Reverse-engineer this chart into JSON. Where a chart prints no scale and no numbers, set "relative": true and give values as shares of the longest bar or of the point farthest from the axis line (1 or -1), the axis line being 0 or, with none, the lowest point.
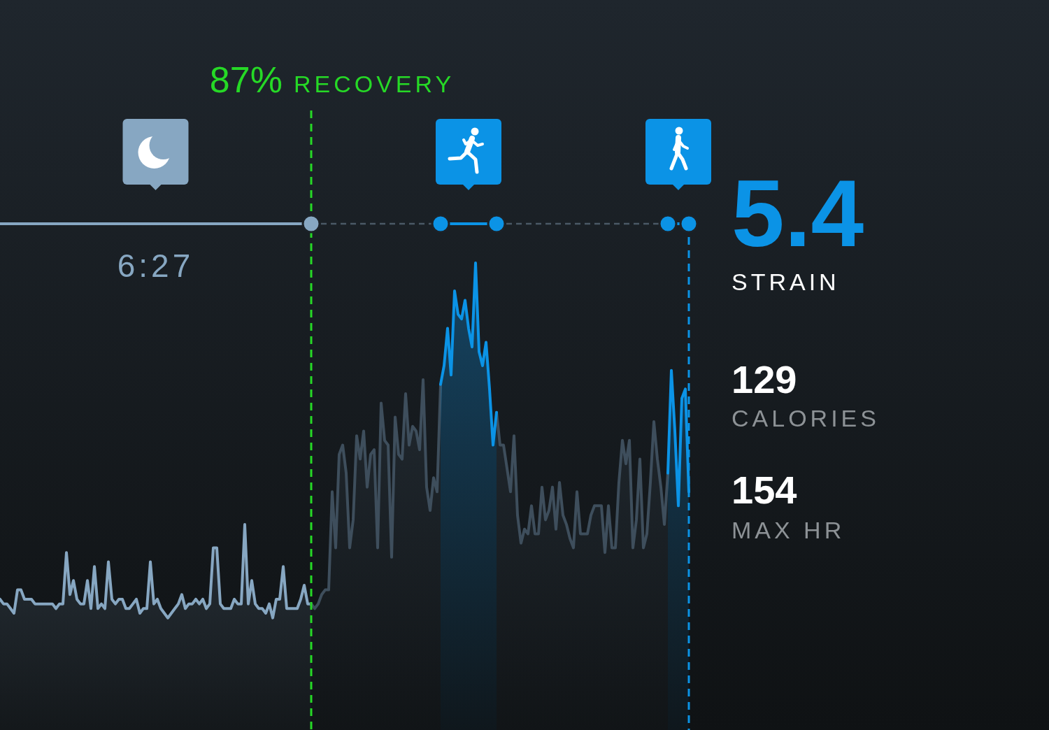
{
  "chart_data": {
    "type": "area",
    "relative": true,
    "categories": [
      null,
      null,
      null,
      null,
      null,
      null,
      null,
      null,
      null,
      null,
      null,
      null,
      null,
      null,
      null,
      null,
      null,
      null,
      null,
      null,
      null,
      null,
      null,
      null,
      null,
      null,
      null,
      null,
      null,
      null,
      null,
      null,
      null,
      null,
      null,
      null,
      null,
      null,
      null,
      null,
      null,
      null,
      null,
      null,
      null,
      null,
      null,
      null,
      null,
      null,
      null,
      null,
      null,
      null,
      null,
      null,
      null,
      null,
      null,
      null,
      null,
      null,
      null,
      null,
      null,
      null,
      null,
      null,
      null,
      null,
      null,
      null,
      null,
      null,
      null,
      null,
      null,
      null,
      null,
      null,
      null,
      null,
      null,
      null,
      null,
      null,
      null,
      null,
      null,
      null,
      null,
      null,
      null,
      null,
      null,
      null,
      null,
      null,
      null,
      null,
      null,
      null,
      null,
      null,
      null,
      null,
      null,
      null,
      null,
      null,
      null,
      null,
      null,
      null,
      null,
      null,
      null,
      null,
      null,
      null,
      null,
      null,
      null,
      null,
      null,
      null,
      null,
      null,
      null,
      null,
      null,
      null,
      null,
      null,
      null,
      null,
      null,
      null,
      null,
      null,
      null,
      null,
      null,
      null,
      null,
      null,
      null,
      null,
      null,
      null,
      null,
      null,
      null,
      null,
      null,
      null,
      null,
      null,
      null,
      null,
      null,
      null,
      null,
      null,
      null,
      null,
      null,
      null,
      null,
      null,
      null,
      null,
      null,
      null,
      null,
      null,
      null,
      null,
      null,
      null,
      null,
      null,
      null,
      null,
      null,
      null,
      null,
      null,
      null,
      null,
      null,
      null,
      null,
      null,
      null,
      null,
      null,
      null
    ],
    "series": [
      {
        "color": "#87a7c2",
        "values": [
          0.28,
          0.27,
          0.27,
          0.26,
          0.25,
          0.3,
          0.3,
          0.28,
          0.28,
          0.28,
          0.27,
          0.27,
          0.27,
          0.27,
          0.27,
          0.27,
          0.26,
          0.27,
          0.27,
          0.38,
          0.29,
          0.32,
          0.28,
          0.27,
          0.27,
          0.32,
          0.26,
          0.35,
          0.26,
          0.27,
          0.26,
          0.36,
          0.28,
          0.27,
          0.28,
          0.28,
          0.26,
          0.26,
          0.27,
          0.28,
          0.25,
          0.26,
          0.26,
          0.36,
          0.27,
          0.28,
          0.26,
          0.25,
          0.24,
          0.25,
          0.26,
          0.27,
          0.29,
          0.26,
          0.27,
          0.27,
          0.28,
          0.27,
          0.28,
          0.26,
          0.27,
          0.39,
          0.39,
          0.27,
          0.26,
          0.26,
          0.26,
          0.28,
          0.27,
          0.27,
          0.44,
          0.27,
          0.32,
          0.27,
          0.26,
          0.26,
          0.25,
          0.27,
          0.24,
          0.28,
          0.28,
          0.35,
          0.26,
          0.26,
          0.26,
          0.26,
          0.28,
          0.31,
          0.27,
          0.27,
          null,
          null,
          null,
          null,
          null,
          null,
          null,
          null,
          null,
          null,
          null,
          null,
          null,
          null,
          null,
          null,
          null,
          null,
          null,
          null,
          null,
          null,
          null,
          null,
          null,
          null,
          null,
          null,
          null,
          null,
          null,
          null,
          null,
          null,
          null,
          null,
          null,
          null,
          null,
          null,
          null,
          null,
          null,
          null,
          null,
          null,
          null,
          null,
          null,
          null,
          null,
          null,
          null,
          null,
          null,
          null,
          null,
          null,
          null,
          null,
          null,
          null,
          null,
          null,
          null,
          null,
          null,
          null,
          null,
          null,
          null,
          null,
          null,
          null,
          null,
          null,
          null,
          null,
          null,
          null,
          null,
          null,
          null,
          null,
          null,
          null,
          null,
          null,
          null,
          null,
          null,
          null,
          null,
          null,
          null,
          null,
          null,
          null,
          null,
          null,
          null,
          null,
          null,
          null,
          null,
          null,
          null,
          null
        ]
      },
      {
        "color": "#3e4e5c",
        "values": [
          null,
          null,
          null,
          null,
          null,
          null,
          null,
          null,
          null,
          null,
          null,
          null,
          null,
          null,
          null,
          null,
          null,
          null,
          null,
          null,
          null,
          null,
          null,
          null,
          null,
          null,
          null,
          null,
          null,
          null,
          null,
          null,
          null,
          null,
          null,
          null,
          null,
          null,
          null,
          null,
          null,
          null,
          null,
          null,
          null,
          null,
          null,
          null,
          null,
          null,
          null,
          null,
          null,
          null,
          null,
          null,
          null,
          null,
          null,
          null,
          null,
          null,
          null,
          null,
          null,
          null,
          null,
          null,
          null,
          null,
          null,
          null,
          null,
          null,
          null,
          null,
          null,
          null,
          null,
          null,
          null,
          null,
          null,
          null,
          null,
          null,
          null,
          null,
          null,
          0.27,
          0.26,
          0.27,
          0.29,
          0.3,
          0.3,
          0.51,
          0.39,
          0.59,
          0.61,
          0.55,
          0.39,
          0.45,
          0.63,
          0.58,
          0.64,
          0.52,
          0.59,
          0.6,
          0.39,
          0.7,
          0.62,
          0.61,
          0.37,
          0.67,
          0.59,
          0.58,
          0.72,
          0.61,
          0.65,
          0.64,
          0.6,
          0.75,
          0.52,
          0.47,
          0.54,
          0.51,
          0.74,
          null,
          null,
          null,
          null,
          null,
          null,
          null,
          null,
          null,
          null,
          null,
          null,
          null,
          null,
          null,
          0.68,
          0.61,
          0.61,
          0.56,
          0.51,
          0.63,
          0.46,
          0.4,
          0.43,
          0.42,
          0.48,
          0.42,
          0.42,
          0.52,
          0.45,
          0.47,
          0.52,
          0.43,
          0.53,
          0.46,
          0.44,
          0.41,
          0.39,
          0.51,
          0.42,
          0.42,
          0.42,
          0.46,
          0.48,
          0.48,
          0.48,
          0.38,
          0.48,
          0.39,
          0.39,
          0.53,
          0.62,
          0.57,
          0.62,
          0.39,
          0.45,
          0.58,
          0.39,
          0.42,
          0.53,
          0.66,
          0.58,
          0.52,
          0.44,
          0.55,
          null,
          null,
          null,
          null,
          null,
          null
        ]
      },
      {
        "color": "#0b93e6",
        "values": [
          null,
          null,
          null,
          null,
          null,
          null,
          null,
          null,
          null,
          null,
          null,
          null,
          null,
          null,
          null,
          null,
          null,
          null,
          null,
          null,
          null,
          null,
          null,
          null,
          null,
          null,
          null,
          null,
          null,
          null,
          null,
          null,
          null,
          null,
          null,
          null,
          null,
          null,
          null,
          null,
          null,
          null,
          null,
          null,
          null,
          null,
          null,
          null,
          null,
          null,
          null,
          null,
          null,
          null,
          null,
          null,
          null,
          null,
          null,
          null,
          null,
          null,
          null,
          null,
          null,
          null,
          null,
          null,
          null,
          null,
          null,
          null,
          null,
          null,
          null,
          null,
          null,
          null,
          null,
          null,
          null,
          null,
          null,
          null,
          null,
          null,
          null,
          null,
          null,
          null,
          null,
          null,
          null,
          null,
          null,
          null,
          null,
          null,
          null,
          null,
          null,
          null,
          null,
          null,
          null,
          null,
          null,
          null,
          null,
          null,
          null,
          null,
          null,
          null,
          null,
          null,
          null,
          null,
          null,
          null,
          null,
          null,
          null,
          null,
          null,
          null,
          0.74,
          0.78,
          0.86,
          0.76,
          0.94,
          0.89,
          0.88,
          0.92,
          0.86,
          0.82,
          1,
          0.81,
          0.78,
          0.83,
          0.73,
          0.61,
          0.68,
          null,
          null,
          null,
          null,
          null,
          null,
          null,
          null,
          null,
          null,
          null,
          null,
          null,
          null,
          null,
          null,
          null,
          null,
          null,
          null,
          null,
          null,
          null,
          null,
          null,
          null,
          null,
          null,
          null,
          null,
          null,
          null,
          null,
          null,
          null,
          null,
          null,
          null,
          null,
          null,
          null,
          null,
          null,
          null,
          null,
          null,
          null,
          null,
          0.55,
          0.77,
          0.64,
          0.48,
          0.71,
          0.73,
          0.51
        ]
      }
    ],
    "annotations": [
      "87% RECOVERY",
      "6:27",
      "5.4",
      "STRAIN",
      "129",
      "CALORIES",
      "154",
      "MAX HR"
    ]
  }
}
